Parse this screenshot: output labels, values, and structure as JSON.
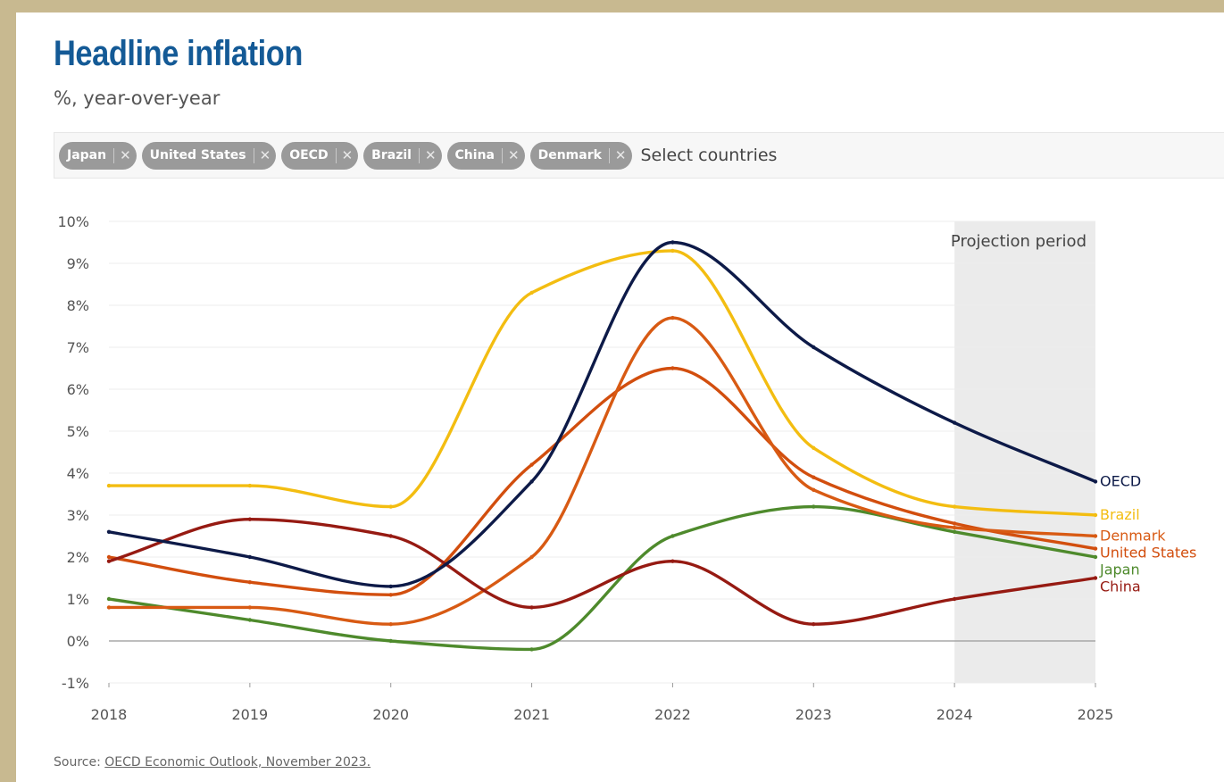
{
  "title": "Headline inflation",
  "subtitle": "%, year-over-year",
  "selector": {
    "chips": [
      {
        "label": "Japan"
      },
      {
        "label": "United States"
      },
      {
        "label": "OECD"
      },
      {
        "label": "Brazil"
      },
      {
        "label": "China"
      },
      {
        "label": "Denmark"
      }
    ],
    "placeholder": "Select countries",
    "remove_glyph": "✕"
  },
  "source": {
    "prefix": "Source:",
    "link_text": "OECD Economic Outlook, November 2023."
  },
  "chart_data": {
    "type": "line",
    "x": [
      2018,
      2019,
      2020,
      2021,
      2022,
      2023,
      2024,
      2025
    ],
    "ylim": [
      -1,
      10
    ],
    "yticks": [
      -1,
      0,
      1,
      2,
      3,
      4,
      5,
      6,
      7,
      8,
      9,
      10
    ],
    "ytick_labels": [
      "-1%",
      "0%",
      "1%",
      "2%",
      "3%",
      "4%",
      "5%",
      "6%",
      "7%",
      "8%",
      "9%",
      "10%"
    ],
    "xtick_labels": [
      "2018",
      "2019",
      "2020",
      "2021",
      "2022",
      "2023",
      "2024",
      "2025"
    ],
    "grid": true,
    "projection": {
      "label": "Projection period",
      "from": 2024,
      "to": 2025,
      "color": "#ebebeb"
    },
    "series": [
      {
        "name": "Japan",
        "color": "#4e8a2c",
        "values": [
          1.0,
          0.5,
          0.0,
          -0.2,
          2.5,
          3.2,
          2.6,
          2.0
        ]
      },
      {
        "name": "United States",
        "color": "#d24e0e",
        "values": [
          2.0,
          1.4,
          1.1,
          4.2,
          6.5,
          3.9,
          2.8,
          2.2
        ]
      },
      {
        "name": "Denmark",
        "color": "#d85a13",
        "values": [
          0.8,
          0.8,
          0.4,
          2.0,
          7.7,
          3.6,
          2.7,
          2.5
        ]
      },
      {
        "name": "Brazil",
        "color": "#f3bd11",
        "values": [
          3.7,
          3.7,
          3.2,
          8.3,
          9.3,
          4.6,
          3.2,
          3.0
        ]
      },
      {
        "name": "China",
        "color": "#961a12",
        "values": [
          1.9,
          2.9,
          2.5,
          0.8,
          1.9,
          0.4,
          1.0,
          1.5
        ]
      },
      {
        "name": "OECD",
        "color": "#0d1a48",
        "values": [
          2.6,
          2.0,
          1.3,
          3.8,
          9.5,
          7.0,
          5.2,
          3.8
        ]
      }
    ],
    "end_labels": [
      {
        "name": "OECD",
        "color": "#0d1a48"
      },
      {
        "name": "Brazil",
        "color": "#f3bd11"
      },
      {
        "name": "Denmark",
        "color": "#d85a13"
      },
      {
        "name": "United States",
        "color": "#d24e0e"
      },
      {
        "name": "Japan",
        "color": "#4e8a2c"
      },
      {
        "name": "China",
        "color": "#961a12"
      }
    ]
  }
}
